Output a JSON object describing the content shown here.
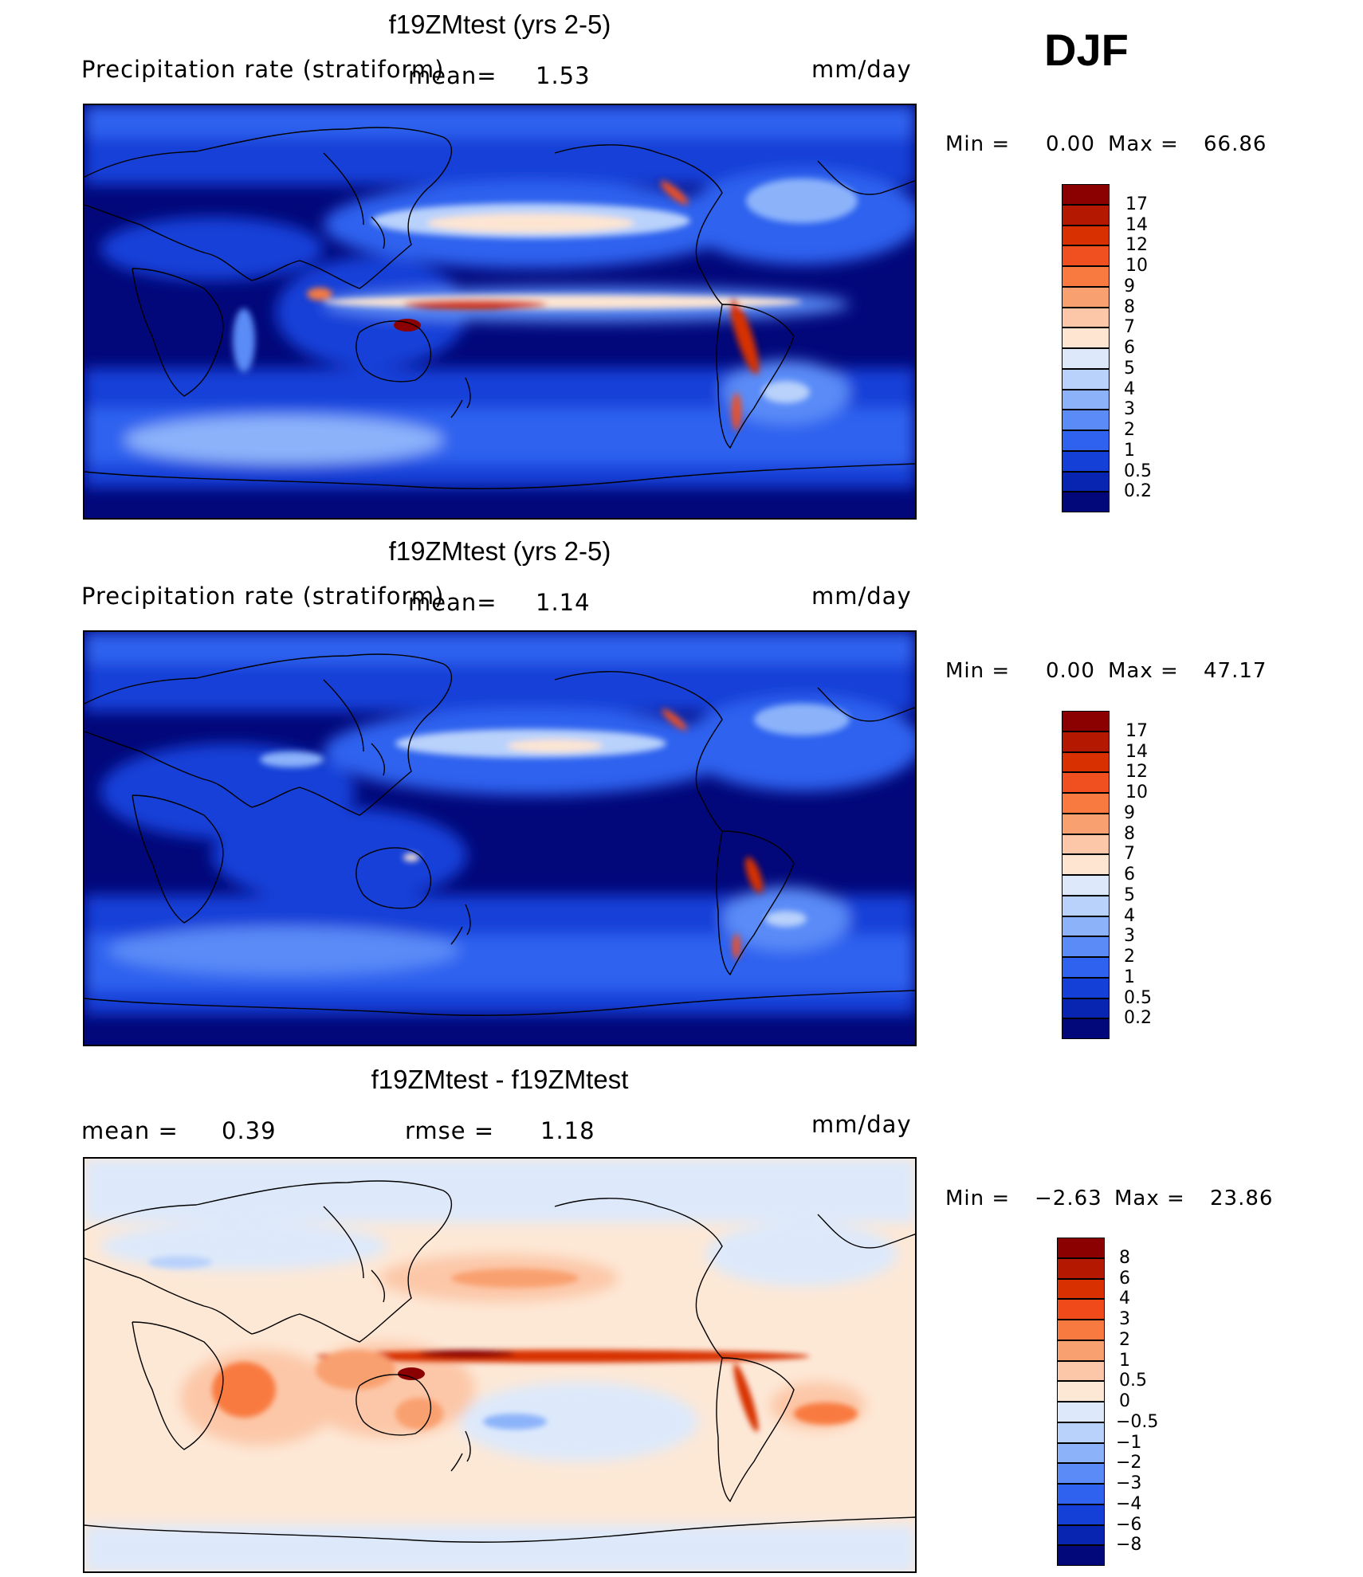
{
  "season": "DJF",
  "panels": [
    {
      "id": "p1",
      "title": "f19ZMtest (yrs 2-5)",
      "variable": "Precipitation rate (stratiform)",
      "stat1_label": "mean=",
      "stat1_value": "1.53",
      "units": "mm/day",
      "min_label": "Min =",
      "min_value": "0.00",
      "max_label": "Max =",
      "max_value": "66.86",
      "colorbar": {
        "levels": [
          "17",
          "14",
          "12",
          "10",
          "9",
          "8",
          "7",
          "6",
          "5",
          "4",
          "3",
          "2",
          "1",
          "0.5",
          "0.2"
        ],
        "colors": [
          "#8b0000",
          "#b51800",
          "#d83000",
          "#f05020",
          "#f87a40",
          "#f9a070",
          "#fcc7a8",
          "#fde5d2",
          "#dde9fb",
          "#b9d2fb",
          "#8cb3fa",
          "#5a8bf7",
          "#2e62ef",
          "#1440d8",
          "#0725b0",
          "#02087a"
        ]
      }
    },
    {
      "id": "p2",
      "title": "f19ZMtest (yrs 2-5)",
      "variable": "Precipitation rate (stratiform)",
      "stat1_label": "mean=",
      "stat1_value": "1.14",
      "units": "mm/day",
      "min_label": "Min =",
      "min_value": "0.00",
      "max_label": "Max =",
      "max_value": "47.17",
      "colorbar": {
        "levels": [
          "17",
          "14",
          "12",
          "10",
          "9",
          "8",
          "7",
          "6",
          "5",
          "4",
          "3",
          "2",
          "1",
          "0.5",
          "0.2"
        ],
        "colors": [
          "#8b0000",
          "#b51800",
          "#d83000",
          "#f05020",
          "#f87a40",
          "#f9a070",
          "#fcc7a8",
          "#fde5d2",
          "#dde9fb",
          "#b9d2fb",
          "#8cb3fa",
          "#5a8bf7",
          "#2e62ef",
          "#1440d8",
          "#0725b0",
          "#02087a"
        ]
      }
    },
    {
      "id": "p3",
      "title": "f19ZMtest - f19ZMtest",
      "stat1_label": "mean =",
      "stat1_value": "0.39",
      "stat2_label": "rmse =",
      "stat2_value": "1.18",
      "units": "mm/day",
      "min_label": "Min =",
      "min_value": "−2.63",
      "max_label": "Max =",
      "max_value": "23.86",
      "colorbar": {
        "levels": [
          "8",
          "6",
          "4",
          "3",
          "2",
          "1",
          "0.5",
          "0",
          "−0.5",
          "−1",
          "−2",
          "−3",
          "−4",
          "−6",
          "−8"
        ],
        "colors": [
          "#8b0000",
          "#b51800",
          "#d83000",
          "#f04a1a",
          "#f87a40",
          "#f9a070",
          "#fcc7a8",
          "#fde8d6",
          "#dde9fb",
          "#b9d2fb",
          "#8cb3fa",
          "#5a8bf7",
          "#2e62ef",
          "#1440d8",
          "#0725b0",
          "#02087a"
        ]
      }
    }
  ]
}
